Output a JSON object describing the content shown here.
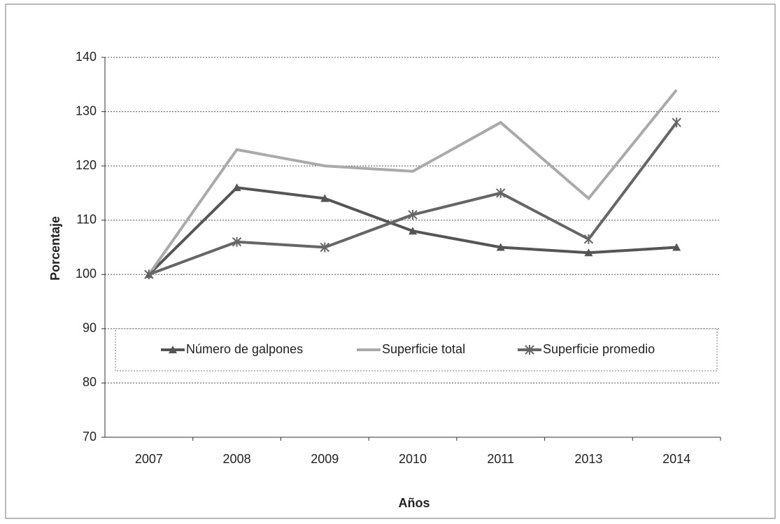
{
  "chart_data": {
    "type": "line",
    "x_label": "Años",
    "y_label": "Porcentaje",
    "categories": [
      "2007",
      "2008",
      "2009",
      "2010",
      "2011",
      "2013",
      "2014"
    ],
    "series": [
      {
        "name": "Número de galpones",
        "color": "#555555",
        "marker": "triangle",
        "values": [
          100,
          116,
          114,
          108,
          105,
          104,
          105
        ]
      },
      {
        "name": "Superficie total",
        "color": "#aaaaaa",
        "marker": "none",
        "values": [
          100,
          123,
          120,
          119,
          128,
          114,
          134
        ]
      },
      {
        "name": "Superficie promedio",
        "color": "#666666",
        "marker": "star",
        "values": [
          100,
          106,
          105,
          111,
          115,
          106.5,
          128
        ]
      }
    ],
    "ylim": [
      70,
      140
    ],
    "yticks": [
      70,
      80,
      90,
      100,
      110,
      120,
      130,
      140
    ],
    "grid": true,
    "legend": "inside-bottom"
  }
}
